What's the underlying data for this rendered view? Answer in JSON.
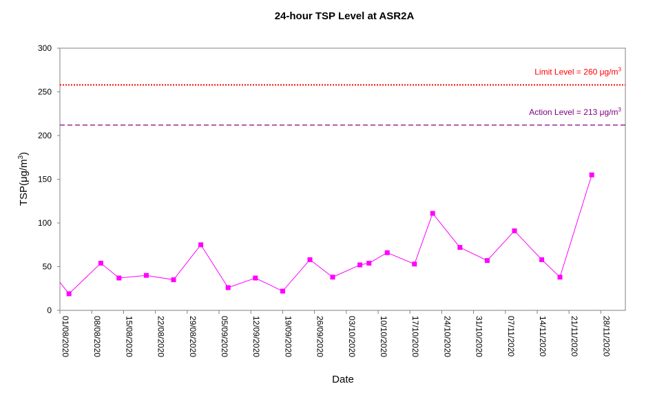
{
  "chart_data": {
    "type": "line",
    "title": "24-hour TSP Level at ASR2A",
    "xlabel": "Date",
    "ylabel": "TSP(µg/m³)",
    "ylabel_parts": {
      "prefix": "TSP(",
      "unit": "μg/m",
      "sup": "3",
      "suffix": ")"
    },
    "ylim": [
      0,
      300
    ],
    "yticks": [
      0,
      50,
      100,
      150,
      200,
      250,
      300
    ],
    "xlim": [
      "2020-08-01",
      "2020-11-28"
    ],
    "xtick_labels": [
      "01/08/2020",
      "08/08/2020",
      "15/08/2020",
      "22/08/2020",
      "29/08/2020",
      "05/09/2020",
      "12/09/2020",
      "19/09/2020",
      "26/09/2020",
      "03/10/2020",
      "10/10/2020",
      "17/10/2020",
      "24/10/2020",
      "31/10/2020",
      "07/11/2020",
      "14/11/2020",
      "21/11/2020",
      "28/11/2020"
    ],
    "grid": false,
    "series": [
      {
        "color": "#ff00ff",
        "marker": "square",
        "x": [
          "2020-08-01",
          "2020-08-03",
          "2020-08-10",
          "2020-08-14",
          "2020-08-20",
          "2020-08-26",
          "2020-09-01",
          "2020-09-07",
          "2020-09-13",
          "2020-09-19",
          "2020-09-25",
          "2020-09-30",
          "2020-10-06",
          "2020-10-08",
          "2020-10-12",
          "2020-10-18",
          "2020-10-22",
          "2020-10-28",
          "2020-11-03",
          "2020-11-09",
          "2020-11-15",
          "2020-11-19",
          "2020-11-26"
        ],
        "values": [
          32,
          19,
          54,
          37,
          40,
          35,
          75,
          26,
          37,
          22,
          58,
          38,
          52,
          54,
          66,
          53,
          111,
          72,
          57,
          91,
          58,
          38,
          155
        ]
      }
    ],
    "reference_lines": [
      {
        "name": "Limit Level",
        "value": 260,
        "drawn_at": 258,
        "label_prefix": "Limit Level = 260 ",
        "unit": "μg/m",
        "sup": "3",
        "color": "#ff0000",
        "style": "dotted"
      },
      {
        "name": "Action Level",
        "value": 213,
        "drawn_at": 212,
        "label_prefix": "Action Level = 213 ",
        "unit": "μg/m",
        "sup": "3",
        "color": "#800080",
        "style": "dashed"
      }
    ]
  }
}
